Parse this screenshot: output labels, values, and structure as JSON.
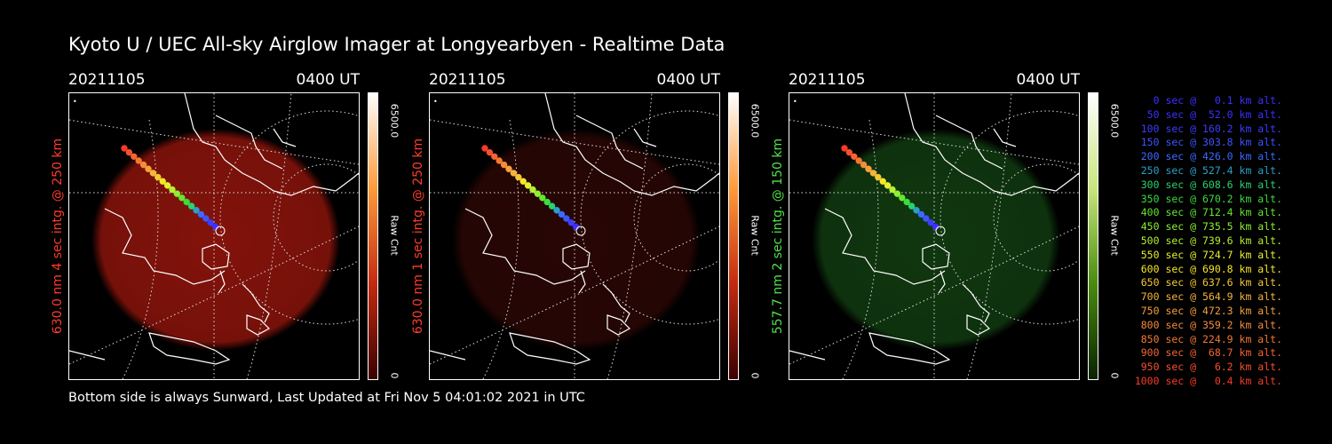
{
  "title": "Kyoto U / UEC All-sky Airglow Imager at Longyearbyen - Realtime Data",
  "footer": "Bottom side is always Sunward, Last Updated at Fri Nov  5 04:01:02 2021 in UTC",
  "panels": [
    {
      "date": "20211105",
      "time": "0400 UT",
      "side_label": "630.0 nm 4 sec intg. @ 250 km",
      "side_color": "#ff3b2b",
      "cb_max": "6500.0",
      "cb_label": "Raw Cnt",
      "cb_min": "0",
      "glow": "#8a140c",
      "bar": [
        "#ffffff",
        "#ff9a3a",
        "#c22a10",
        "#3a0000"
      ]
    },
    {
      "date": "20211105",
      "time": "0400 UT",
      "side_label": "630.0 nm 1 sec intg. @ 250 km",
      "side_color": "#ff3b2b",
      "cb_max": "6500.0",
      "cb_label": "Raw Cnt",
      "cb_min": "0",
      "glow": "#2a0705",
      "bar": [
        "#ffffff",
        "#ff9a3a",
        "#c22a10",
        "#3a0000"
      ]
    },
    {
      "date": "20211105",
      "time": "0400 UT",
      "side_label": "557.7 nm 2 sec intg. @ 150 km",
      "side_color": "#4fe34a",
      "cb_max": "6500.0",
      "cb_label": "Raw Cnt",
      "cb_min": "0",
      "glow": "#113a10",
      "bar": [
        "#ffffff",
        "#c8e67a",
        "#4a8a10",
        "#0a2200"
      ]
    }
  ],
  "legend": [
    {
      "text": "0 sec @   0.1 km alt.",
      "color": "#3c2fff"
    },
    {
      "text": "50 sec @  52.0 km alt.",
      "color": "#3c2fff"
    },
    {
      "text": "100 sec @ 160.2 km alt.",
      "color": "#3c3cff"
    },
    {
      "text": "150 sec @ 303.8 km alt.",
      "color": "#3c55ff"
    },
    {
      "text": "200 sec @ 426.0 km alt.",
      "color": "#3c6aff"
    },
    {
      "text": "250 sec @ 527.4 km alt.",
      "color": "#2aa0c8"
    },
    {
      "text": "300 sec @ 608.6 km alt.",
      "color": "#2ad26e"
    },
    {
      "text": "350 sec @ 670.2 km alt.",
      "color": "#3cdc3c"
    },
    {
      "text": "400 sec @ 712.4 km alt.",
      "color": "#64e632"
    },
    {
      "text": "450 sec @ 735.5 km alt.",
      "color": "#8cf032"
    },
    {
      "text": "500 sec @ 739.6 km alt.",
      "color": "#b4f032"
    },
    {
      "text": "550 sec @ 724.7 km alt.",
      "color": "#e6f032"
    },
    {
      "text": "600 sec @ 690.8 km alt.",
      "color": "#f5e628"
    },
    {
      "text": "650 sec @ 637.6 km alt.",
      "color": "#f5c832"
    },
    {
      "text": "700 sec @ 564.9 km alt.",
      "color": "#f5b43c"
    },
    {
      "text": "750 sec @ 472.3 km alt.",
      "color": "#f5a03c"
    },
    {
      "text": "800 sec @ 359.2 km alt.",
      "color": "#f58c3c"
    },
    {
      "text": "850 sec @ 224.9 km alt.",
      "color": "#f57832"
    },
    {
      "text": "900 sec @  68.7 km alt.",
      "color": "#f56432"
    },
    {
      "text": "950 sec @   6.2 km alt.",
      "color": "#f55032"
    },
    {
      "text": "1000 sec @   0.4 km alt.",
      "color": "#f53c28"
    }
  ]
}
